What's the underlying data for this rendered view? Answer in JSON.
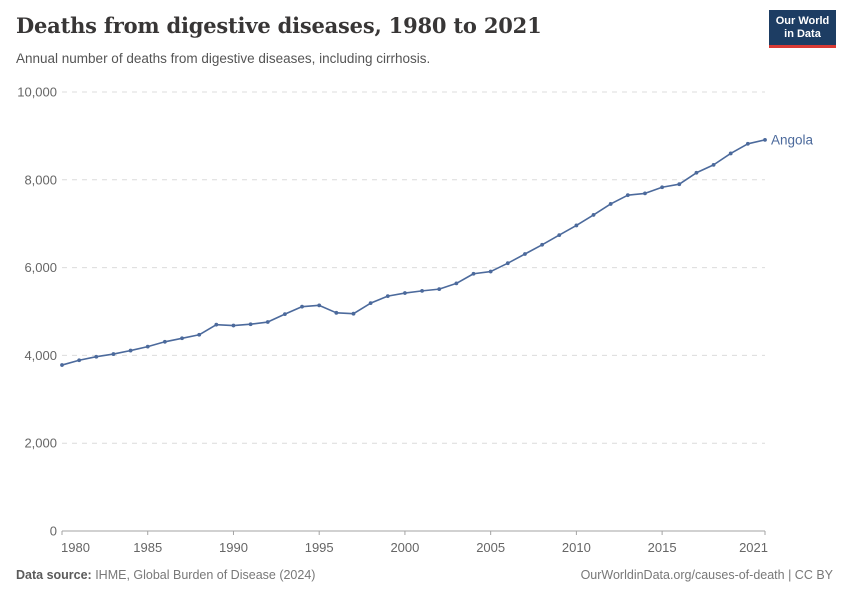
{
  "header": {
    "title": "Deaths from digestive diseases, 1980 to 2021",
    "subtitle": "Annual number of deaths from digestive diseases, including cirrhosis.",
    "logo": {
      "line1": "Our World",
      "line2": "in Data"
    }
  },
  "chart_data": {
    "type": "line",
    "title": "Deaths from digestive diseases, 1980 to 2021",
    "entity": "Angola",
    "x": [
      1980,
      1981,
      1982,
      1983,
      1984,
      1985,
      1986,
      1987,
      1988,
      1989,
      1990,
      1991,
      1992,
      1993,
      1994,
      1995,
      1996,
      1997,
      1998,
      1999,
      2000,
      2001,
      2002,
      2003,
      2004,
      2005,
      2006,
      2007,
      2008,
      2009,
      2010,
      2011,
      2012,
      2013,
      2014,
      2015,
      2016,
      2017,
      2018,
      2019,
      2020,
      2021
    ],
    "series": [
      {
        "name": "Angola",
        "values": [
          3780,
          3890,
          3970,
          4030,
          4110,
          4200,
          4310,
          4390,
          4470,
          4700,
          4680,
          4710,
          4760,
          4940,
          5110,
          5140,
          4970,
          4950,
          5190,
          5350,
          5420,
          5470,
          5510,
          5640,
          5860,
          5910,
          6100,
          6310,
          6520,
          6740,
          6960,
          7200,
          7450,
          7650,
          7690,
          7830,
          7900,
          8160,
          8340,
          8600,
          8820,
          8910
        ]
      }
    ],
    "xlabel": "",
    "ylabel": "",
    "ylim": [
      0,
      10000
    ],
    "xlim": [
      1980,
      2021
    ],
    "yticks": [
      0,
      2000,
      4000,
      6000,
      8000,
      10000
    ],
    "ytick_labels": [
      "0",
      "2,000",
      "4,000",
      "6,000",
      "8,000",
      "10,000"
    ],
    "xticks": [
      1980,
      1985,
      1990,
      1995,
      2000,
      2005,
      2010,
      2015,
      2021
    ],
    "xtick_labels": [
      "1980",
      "1985",
      "1990",
      "1995",
      "2000",
      "2005",
      "2010",
      "2015",
      "2021"
    ],
    "grid": "horizontal-dashed",
    "legend_position": "end-of-line-label"
  },
  "colors": {
    "line": "#4C6A9C",
    "entity_label": "#4C6A9C",
    "gridline": "#dcdcdc",
    "axis": "#a3a3a3",
    "tick_text": "#666666",
    "logo_bg": "#1d3d63",
    "logo_red": "#d93a34"
  },
  "footer": {
    "source_label": "Data source:",
    "source_value": " IHME, Global Burden of Disease (2024)",
    "credit": "OurWorldinData.org/causes-of-death | CC BY"
  }
}
